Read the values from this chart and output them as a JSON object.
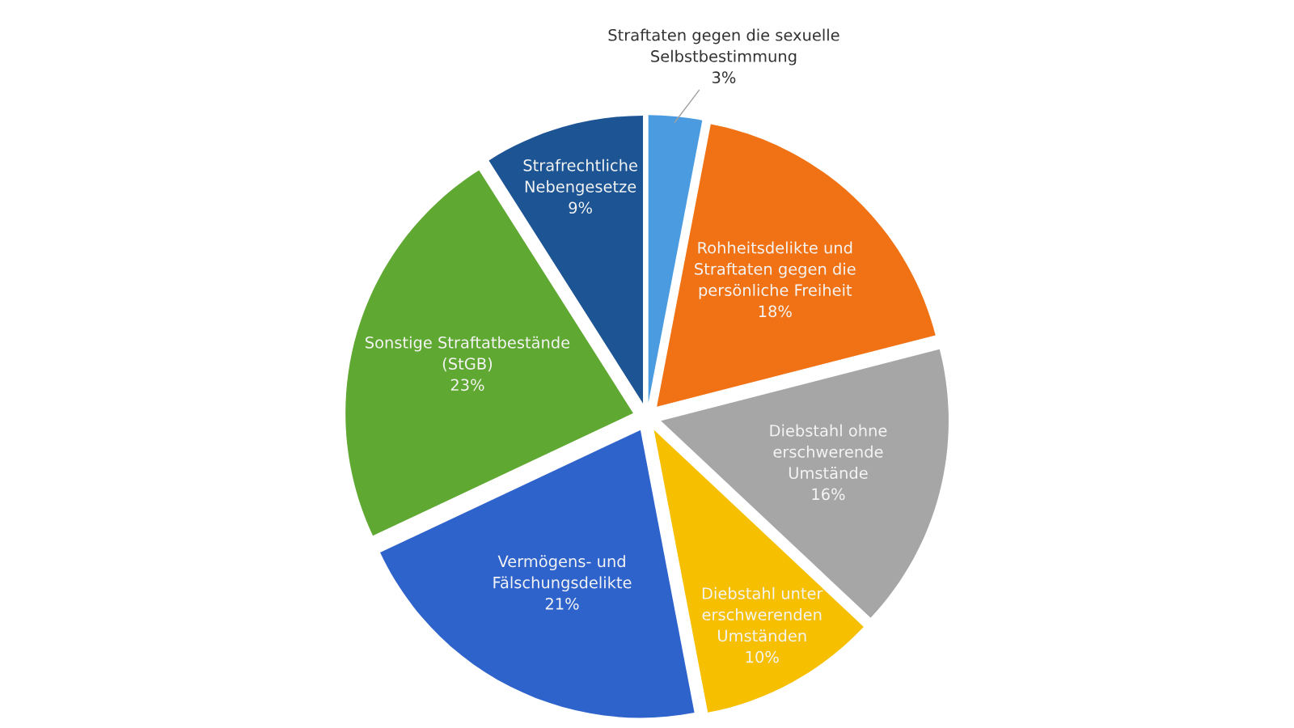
{
  "chart_data": {
    "type": "pie",
    "categories": [
      "Straftaten gegen die sexuelle\nSelbstbestimmung",
      "Rohheitsdelikte und\nStraftaten gegen die\npersönliche Freiheit",
      "Diebstahl ohne\nerschwerende\nUmstände",
      "Diebstahl unter\nerschwerenden\nUmständen",
      "Vermögens- und\nFälschungsdelikte",
      "Sonstige Straftatbestände\n(StGB)",
      "Strafrechtliche\nNebengesetze"
    ],
    "values": [
      3,
      18,
      16,
      10,
      21,
      23,
      9
    ],
    "value_labels": [
      "3%",
      "18%",
      "16%",
      "10%",
      "21%",
      "23%",
      "9%"
    ],
    "colors": [
      "#4a9be0",
      "#f07214",
      "#a6a6a6",
      "#f6c000",
      "#2f63cc",
      "#5fa832",
      "#1c5494"
    ]
  }
}
